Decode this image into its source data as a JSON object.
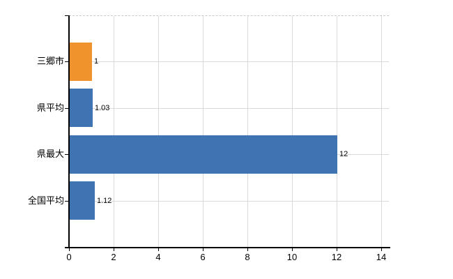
{
  "colors": {
    "highlight_bar": "#f0932d",
    "default_bar": "#3f73b1",
    "gridline": "#d9d9d9",
    "top_border_dashed": "#c9c9c9",
    "axis": "#000000",
    "text": "#000000",
    "background": "#ffffff"
  },
  "chart_data": {
    "type": "bar",
    "orientation": "horizontal",
    "title": "",
    "xlabel": "",
    "ylabel": "",
    "categories": [
      "三郷市",
      "県平均",
      "県最大",
      "全国平均"
    ],
    "values": [
      1,
      1.03,
      12,
      1.12
    ],
    "value_labels": [
      "1",
      "1.03",
      "12",
      "1.12"
    ],
    "bar_colors": [
      "#f0932d",
      "#3f73b1",
      "#3f73b1",
      "#3f73b1"
    ],
    "x_ticks": [
      0,
      2,
      4,
      6,
      8,
      10,
      12,
      14
    ],
    "xlim": [
      0,
      14.35
    ],
    "grid": true,
    "legend": false
  }
}
